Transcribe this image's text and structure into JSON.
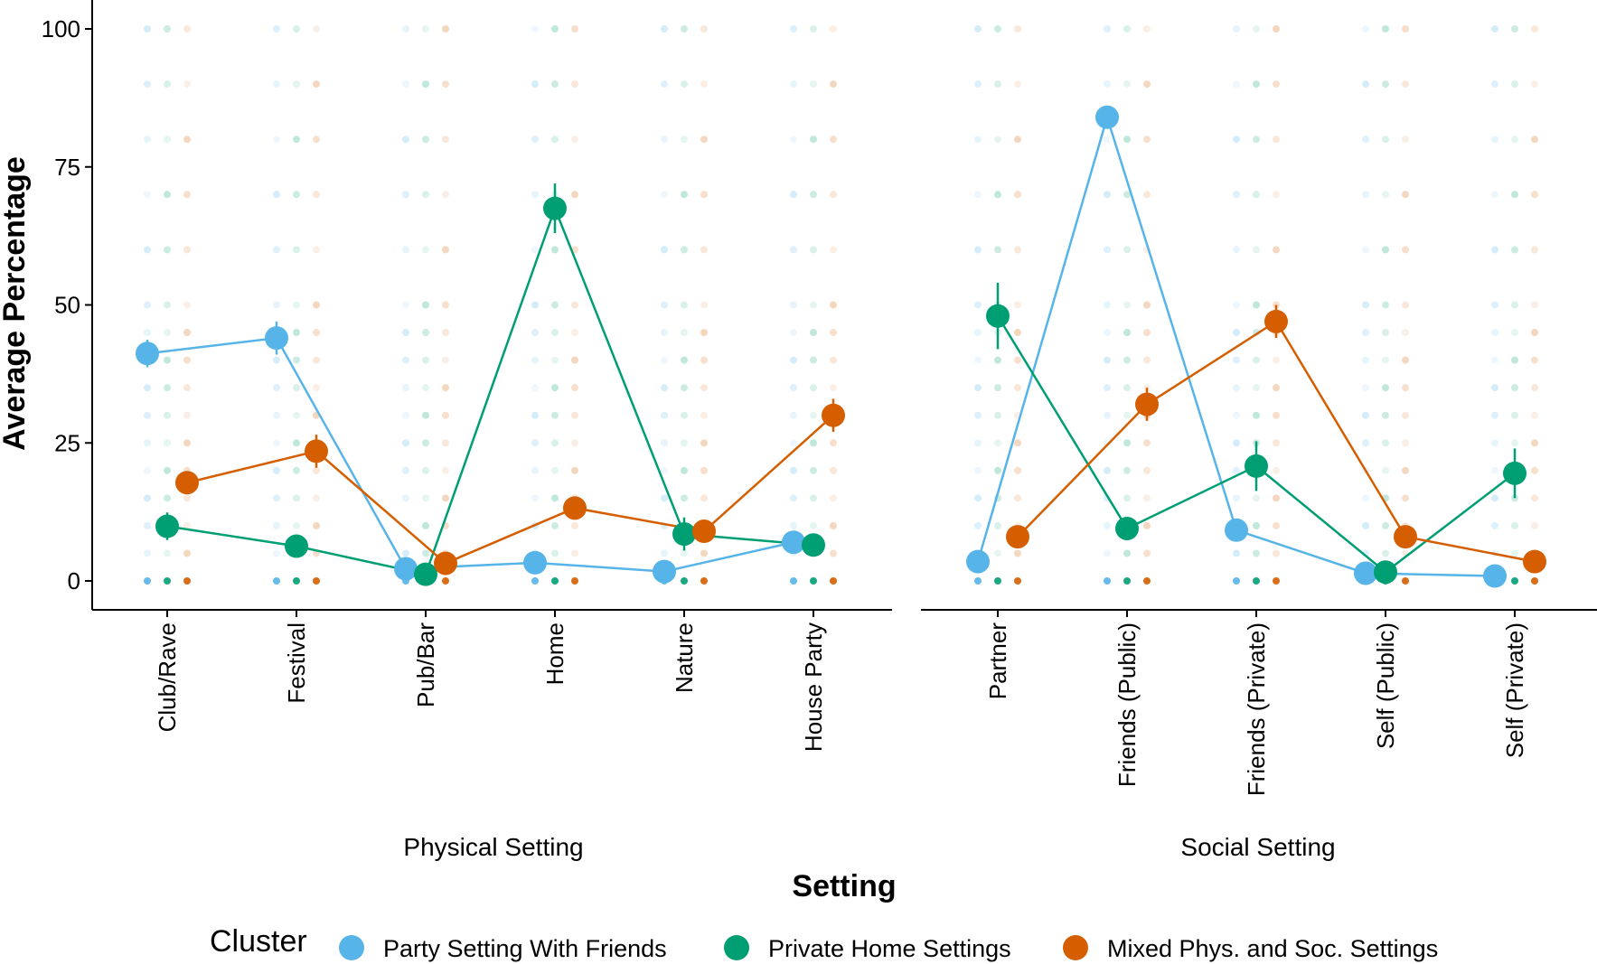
{
  "chart_data": {
    "type": "line",
    "ylabel": "Average Percentage",
    "xlabel": "Setting",
    "ylim": [
      0,
      100
    ],
    "yticks": [
      "0",
      "25",
      "50",
      "75",
      "100"
    ],
    "legend": {
      "title": "Cluster",
      "position": "bottom"
    },
    "series": [
      {
        "name": "Party Setting With Friends",
        "color": "#56B4E9"
      },
      {
        "name": "Private Home Settings",
        "color": "#009E73"
      },
      {
        "name": "Mixed Phys. and Soc. Settings",
        "color": "#D55E00"
      }
    ],
    "panels": [
      {
        "label": "Physical Setting",
        "categories": [
          "Club/Rave",
          "Festival",
          "Pub/Bar",
          "Home",
          "Nature",
          "House Party"
        ],
        "values": [
          [
            41.2,
            44.0,
            2.2,
            3.3,
            1.7,
            7.0
          ],
          [
            9.9,
            6.3,
            1.2,
            67.5,
            8.5,
            6.5
          ],
          [
            17.8,
            23.5,
            3.2,
            13.2,
            9.0,
            30.0
          ]
        ],
        "errors": [
          [
            2.5,
            3.0,
            1.0,
            1.5,
            1.0,
            2.0
          ],
          [
            2.5,
            1.5,
            1.0,
            4.5,
            3.0,
            1.5
          ],
          [
            2.0,
            3.0,
            1.2,
            2.0,
            1.5,
            3.0
          ]
        ]
      },
      {
        "label": "Social Setting",
        "categories": [
          "Partner",
          "Friends (Public)",
          "Friends (Private)",
          "Self (Public)",
          "Self (Private)"
        ],
        "values": [
          [
            3.5,
            84.0,
            9.2,
            1.4,
            0.9
          ],
          [
            48.0,
            9.5,
            20.8,
            1.6,
            19.5
          ],
          [
            8.0,
            32.0,
            47.0,
            8.0,
            3.5
          ]
        ],
        "errors": [
          [
            1.5,
            2.0,
            1.5,
            0.8,
            0.8
          ],
          [
            6.0,
            2.0,
            4.5,
            1.0,
            4.5
          ],
          [
            1.5,
            3.0,
            3.0,
            1.5,
            1.2
          ]
        ]
      }
    ]
  }
}
